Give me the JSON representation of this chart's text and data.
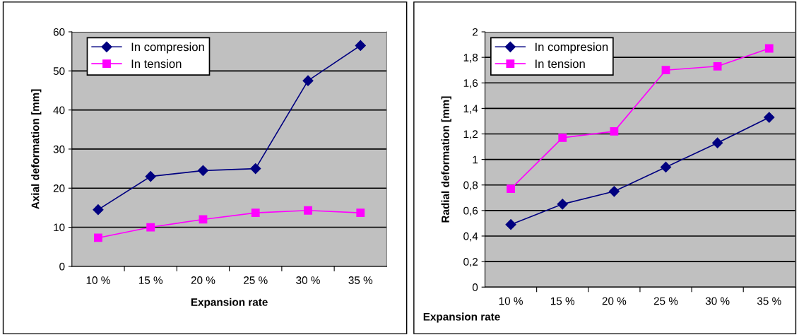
{
  "chart_data": [
    {
      "type": "line",
      "xlabel": "Expansion rate",
      "ylabel": "Axial deformation [mm]",
      "categories": [
        "10 %",
        "15 %",
        "20 %",
        "25 %",
        "30 %",
        "35 %"
      ],
      "ylim": [
        0,
        60
      ],
      "yticks": [
        0,
        10,
        20,
        30,
        40,
        50,
        60
      ],
      "grid": "y",
      "legend": "top left",
      "series": [
        {
          "name": "In compresion",
          "color": "#000080",
          "marker": "diamond",
          "values": [
            14.5,
            23,
            24.5,
            25,
            47.5,
            56.5
          ]
        },
        {
          "name": "In tension",
          "color": "#ff00ff",
          "marker": "square",
          "values": [
            7.3,
            10,
            12,
            13.7,
            14.3,
            13.7
          ]
        }
      ]
    },
    {
      "type": "line",
      "xlabel": "Expansion rate",
      "ylabel": "Radial deformation [mm]",
      "categories": [
        "10 %",
        "15 %",
        "20 %",
        "25 %",
        "30 %",
        "35 %"
      ],
      "ylim": [
        0,
        2
      ],
      "yticks": [
        0,
        {
          "value": 0.2,
          "label": "0,2"
        },
        {
          "value": 0.4,
          "label": "0,4"
        },
        {
          "value": 0.6,
          "label": "0,6"
        },
        {
          "value": 0.8,
          "label": "0,8"
        },
        1,
        {
          "value": 1.2,
          "label": "1,2"
        },
        {
          "value": 1.4,
          "label": "1,4"
        },
        {
          "value": 1.6,
          "label": "1,6"
        },
        {
          "value": 1.8,
          "label": "1,8"
        },
        2
      ],
      "grid": "y",
      "legend": "top left",
      "series": [
        {
          "name": "In compresion",
          "color": "#000080",
          "marker": "diamond",
          "values": [
            0.49,
            0.65,
            0.75,
            0.94,
            1.13,
            1.33
          ]
        },
        {
          "name": "In tension",
          "color": "#ff00ff",
          "marker": "square",
          "values": [
            0.77,
            1.17,
            1.22,
            1.7,
            1.73,
            1.87
          ]
        }
      ]
    }
  ]
}
